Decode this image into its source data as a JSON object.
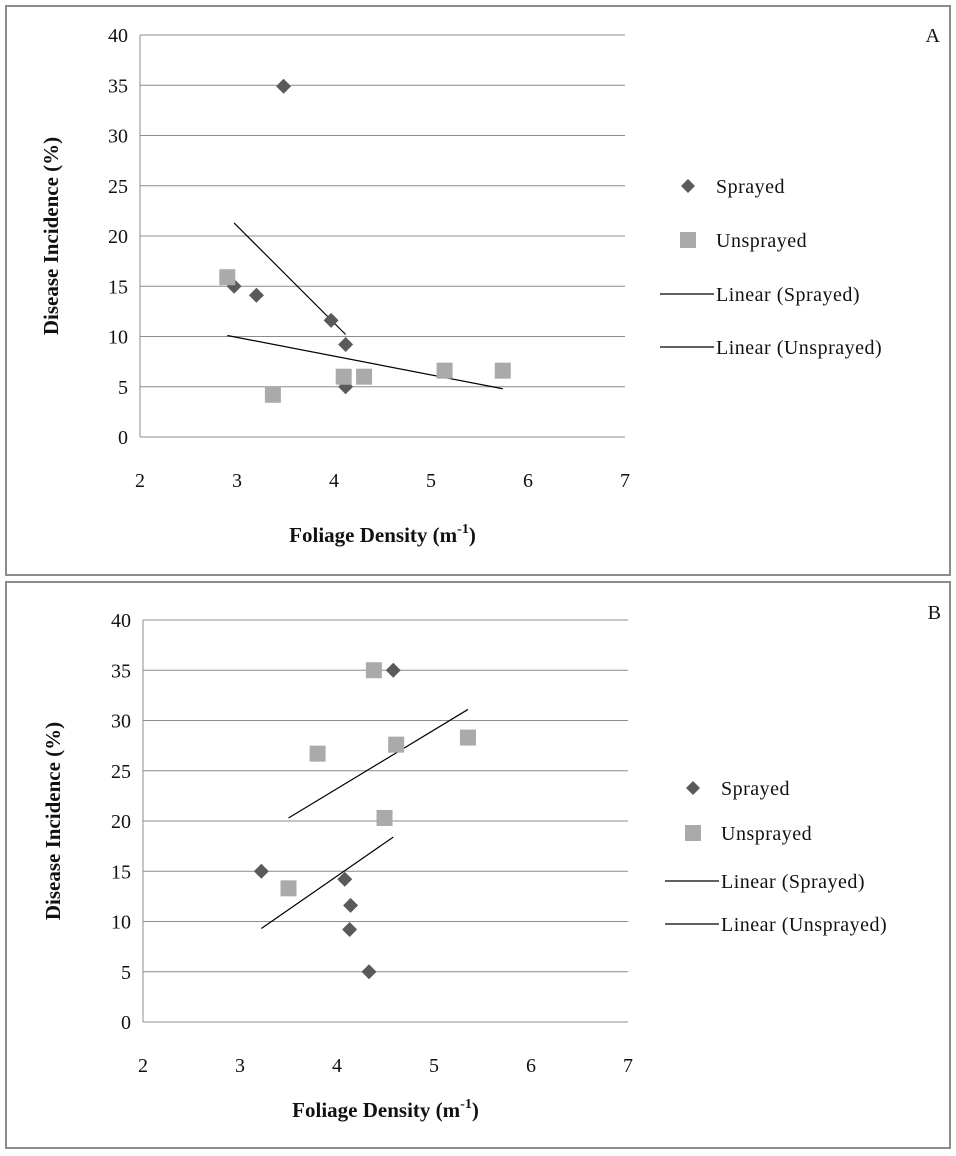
{
  "chart_data": [
    {
      "type": "scatter",
      "panel_label": "A",
      "xlabel": "Foliage Density (m",
      "xlabel_sup": "-1",
      "xlabel_close": ")",
      "ylabel": "Disease Incidence (%)",
      "xlim": [
        2,
        7
      ],
      "ylim": [
        0,
        40
      ],
      "x_ticks": [
        2,
        3,
        4,
        5,
        6,
        7
      ],
      "y_ticks": [
        0,
        5,
        10,
        15,
        20,
        25,
        30,
        35,
        40
      ],
      "grid": true,
      "legend_position": "right",
      "series": [
        {
          "name": "Sprayed",
          "marker": "diamond",
          "color": "#5a5a5a",
          "points": [
            [
              2.97,
              15.0
            ],
            [
              3.2,
              14.1
            ],
            [
              3.48,
              34.9
            ],
            [
              3.97,
              11.6
            ],
            [
              4.12,
              9.2
            ],
            [
              4.12,
              5.0
            ]
          ]
        },
        {
          "name": "Unsprayed",
          "marker": "square",
          "color": "#aaaaaa",
          "points": [
            [
              2.9,
              15.9
            ],
            [
              3.37,
              4.2
            ],
            [
              4.1,
              6.0
            ],
            [
              4.31,
              6.0
            ],
            [
              5.14,
              6.6
            ],
            [
              5.74,
              6.6
            ]
          ]
        }
      ],
      "trendlines": [
        {
          "name": "Linear (Sprayed)",
          "x": [
            2.97,
            4.12
          ],
          "y": [
            21.3,
            10.2
          ]
        },
        {
          "name": "Linear (Unsprayed)",
          "x": [
            2.9,
            5.74
          ],
          "y": [
            10.1,
            4.8
          ]
        }
      ]
    },
    {
      "type": "scatter",
      "panel_label": "B",
      "xlabel": "Foliage Density (m",
      "xlabel_sup": "-1",
      "xlabel_close": ")",
      "ylabel": "Disease Incidence (%)",
      "xlim": [
        2,
        7
      ],
      "ylim": [
        0,
        40
      ],
      "x_ticks": [
        2,
        3,
        4,
        5,
        6,
        7
      ],
      "y_ticks": [
        0,
        5,
        10,
        15,
        20,
        25,
        30,
        35,
        40
      ],
      "grid": true,
      "legend_position": "right",
      "series": [
        {
          "name": "Sprayed",
          "marker": "diamond",
          "color": "#5a5a5a",
          "points": [
            [
              3.22,
              15.0
            ],
            [
              4.08,
              14.2
            ],
            [
              4.14,
              11.6
            ],
            [
              4.13,
              9.2
            ],
            [
              4.33,
              5.0
            ],
            [
              4.58,
              35.0
            ]
          ]
        },
        {
          "name": "Unsprayed",
          "marker": "square",
          "color": "#aaaaaa",
          "points": [
            [
              3.5,
              13.3
            ],
            [
              3.8,
              26.7
            ],
            [
              4.38,
              35.0
            ],
            [
              4.49,
              20.3
            ],
            [
              4.61,
              27.6
            ],
            [
              5.35,
              28.3
            ]
          ]
        }
      ],
      "trendlines": [
        {
          "name": "Linear (Sprayed)",
          "x": [
            3.22,
            4.58
          ],
          "y": [
            9.3,
            18.4
          ]
        },
        {
          "name": "Linear (Unsprayed)",
          "x": [
            3.5,
            5.35
          ],
          "y": [
            20.3,
            31.1
          ]
        }
      ]
    }
  ]
}
